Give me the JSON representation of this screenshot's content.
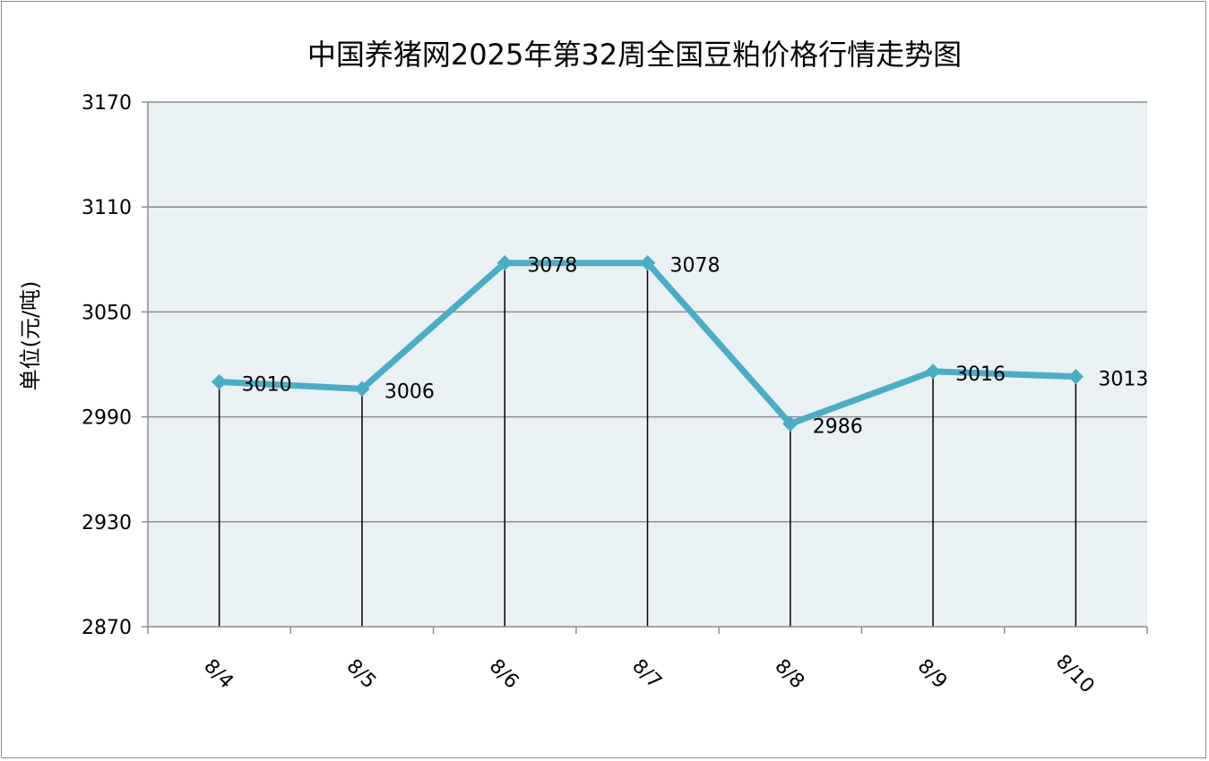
{
  "chart_data": {
    "type": "line",
    "title": "中国养猪网2025年第32周全国豆粕价格行情走势图",
    "ylabel": "单位(元/吨)",
    "xlabel": "",
    "categories": [
      "8/4",
      "8/5",
      "8/6",
      "8/7",
      "8/8",
      "8/9",
      "8/10"
    ],
    "series": [
      {
        "values": [
          3010,
          3006,
          3078,
          3078,
          2986,
          3016,
          3013
        ],
        "color": "#4bacc6"
      }
    ],
    "data_labels": [
      "3010",
      "3006",
      "3078",
      "3078",
      "2986",
      "3016",
      "3013"
    ],
    "ylim": [
      2870,
      3170
    ],
    "yticks": [
      2870,
      2930,
      2990,
      3050,
      3110,
      3170
    ],
    "ytick_labels": [
      "2870",
      "2930",
      "2990",
      "3050",
      "3110",
      "3170"
    ],
    "grid": true,
    "drop_lines": true,
    "legend": "none",
    "plot_background": "#e9f1f5",
    "gridline_color": "#8c8c8c"
  }
}
